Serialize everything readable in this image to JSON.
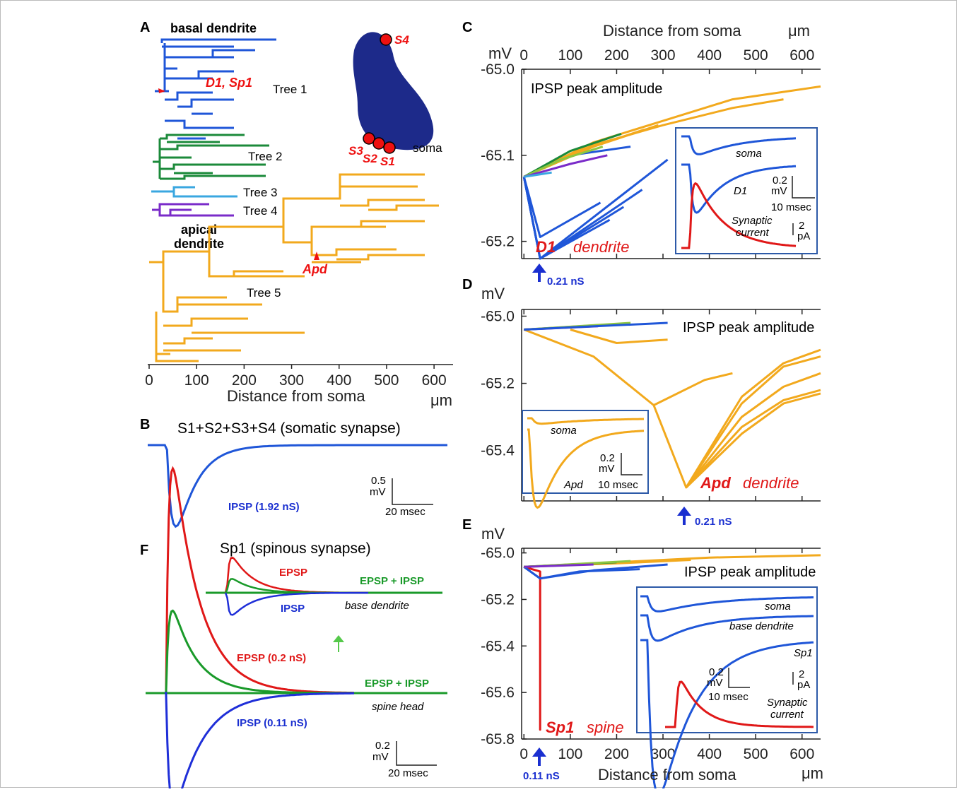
{
  "panels": {
    "A": {
      "label": "A",
      "basal_label": "basal dendrite",
      "apical_label": [
        "apical",
        "dendrite"
      ],
      "d1_label": "D1, Sp1",
      "apd_label": "Apd",
      "trees": [
        "Tree 1",
        "Tree 2",
        "Tree 3",
        "Tree 4",
        "Tree 5"
      ],
      "synapses": [
        "S1",
        "S2",
        "S3",
        "S4"
      ],
      "soma_label": "soma",
      "xlabel": "Distance from soma",
      "unit": "μm",
      "ticks": [
        "0",
        "100",
        "200",
        "300",
        "400",
        "500",
        "600"
      ]
    },
    "B": {
      "label": "B",
      "title": "S1+S2+S3+S4 (somatic synapse)",
      "trace_label": "IPSP (1.92 nS)",
      "scale_v": [
        "0.5",
        "mV"
      ],
      "scale_h": "20 msec"
    },
    "C": {
      "label": "C",
      "site": "D1",
      "site_type": "dendrite",
      "conductance": "0.21 nS",
      "inset": {
        "soma": "soma",
        "d1": "D1",
        "scale_v": [
          "0.2",
          "mV"
        ],
        "scale_h": "10 msec",
        "current": [
          "Synaptic",
          "current"
        ],
        "current_scale": [
          "2",
          "pA"
        ]
      }
    },
    "D": {
      "label": "D",
      "site": "Apd",
      "site_type": "dendrite",
      "conductance": "0.21 nS",
      "inset": {
        "soma": "soma",
        "apd": "Apd",
        "scale_v": [
          "0.2",
          "mV"
        ],
        "scale_h": "10 msec"
      }
    },
    "E": {
      "label": "E",
      "site": "Sp1",
      "site_type": "spine",
      "conductance": "0.11 nS",
      "inset": {
        "soma": "soma",
        "base": "base dendrite",
        "sp1": "Sp1",
        "scale_v": [
          "0.2",
          "mV"
        ],
        "scale_h": "10 msec",
        "current": [
          "Synaptic",
          "current"
        ],
        "current_scale": [
          "2",
          "pA"
        ]
      }
    },
    "F": {
      "label": "F",
      "title": "Sp1 (spinous synapse)",
      "labels": [
        "EPSP (0.2 nS)",
        "EPSP + IPSP",
        "IPSP (0.11 nS)"
      ],
      "inset_labels": [
        "EPSP",
        "EPSP + IPSP",
        "IPSP"
      ],
      "location": "spine head",
      "inset_location": "base dendrite",
      "scale_v": [
        "0.2",
        "mV"
      ],
      "scale_h": "20 msec"
    }
  },
  "colors": {
    "tree1": "#1f56d8",
    "tree2": "#1b8a3a",
    "tree3": "#3aa7e0",
    "tree4": "#7a2bc9",
    "tree5": "#f2a91d",
    "tree6": "#8dc63f",
    "highlight": "#e01818",
    "stimulus": "#1a2fd0"
  },
  "chart_data": [
    {
      "type": "line",
      "title": "IPSP peak amplitude",
      "xlabel": "Distance from soma",
      "xunit": "μm",
      "yunit": "mV",
      "xlim": [
        -5,
        640
      ],
      "ylim": [
        -65.22,
        -65.0
      ],
      "xticks": [
        0,
        100,
        200,
        300,
        400,
        500,
        600
      ],
      "yticks": [
        -65.0,
        -65.1,
        -65.2
      ],
      "ytick_labels": [
        "-65.0",
        "-65.1",
        "-65.2"
      ],
      "x_axis_position": "top",
      "series": [
        {
          "color": "#1f56d8",
          "x": [
            0,
            35,
            310
          ],
          "y": [
            -65.125,
            -65.22,
            -65.105
          ]
        },
        {
          "color": "#1f56d8",
          "x": [
            0,
            35,
            255
          ],
          "y": [
            -65.125,
            -65.22,
            -65.14
          ]
        },
        {
          "color": "#1f56d8",
          "x": [
            0,
            35,
            215
          ],
          "y": [
            -65.125,
            -65.22,
            -65.16
          ]
        },
        {
          "color": "#1f56d8",
          "x": [
            0,
            35,
            185
          ],
          "y": [
            -65.125,
            -65.22,
            -65.175
          ]
        },
        {
          "color": "#1f56d8",
          "x": [
            0,
            35,
            165
          ],
          "y": [
            -65.125,
            -65.195,
            -65.155
          ]
        },
        {
          "color": "#1f56d8",
          "x": [
            0,
            100,
            230
          ],
          "y": [
            -65.125,
            -65.1,
            -65.09
          ]
        },
        {
          "color": "#f2a91d",
          "x": [
            0,
            150,
            300,
            450,
            640
          ],
          "y": [
            -65.125,
            -65.085,
            -65.06,
            -65.035,
            -65.02
          ]
        },
        {
          "color": "#f2a91d",
          "x": [
            0,
            150,
            300,
            450,
            560
          ],
          "y": [
            -65.125,
            -65.088,
            -65.065,
            -65.045,
            -65.035
          ]
        },
        {
          "color": "#f2a91d",
          "x": [
            0,
            150,
            290
          ],
          "y": [
            -65.125,
            -65.09,
            -65.065
          ]
        },
        {
          "color": "#f2a91d",
          "x": [
            0,
            120,
            260
          ],
          "y": [
            -65.125,
            -65.095,
            -65.07
          ]
        },
        {
          "color": "#1b8a3a",
          "x": [
            0,
            100,
            210
          ],
          "y": [
            -65.125,
            -65.095,
            -65.075
          ]
        },
        {
          "color": "#8dc63f",
          "x": [
            0,
            80,
            170
          ],
          "y": [
            -65.125,
            -65.105,
            -65.09
          ]
        },
        {
          "color": "#7a2bc9",
          "x": [
            0,
            100,
            180
          ],
          "y": [
            -65.125,
            -65.11,
            -65.1
          ]
        },
        {
          "color": "#3aa7e0",
          "x": [
            0,
            60
          ],
          "y": [
            -65.125,
            -65.12
          ]
        }
      ]
    },
    {
      "type": "line",
      "title": "IPSP peak amplitude",
      "xlabel": "",
      "yunit": "mV",
      "xlim": [
        -5,
        640
      ],
      "ylim": [
        -65.55,
        -64.98
      ],
      "xticks": [
        0,
        100,
        200,
        300,
        400,
        500,
        600
      ],
      "yticks": [
        -65.0,
        -65.2,
        -65.4
      ],
      "ytick_labels": [
        "-65.0",
        "-65.2",
        "-65.4"
      ],
      "series": [
        {
          "color": "#f2a91d",
          "x": [
            0,
            150,
            280,
            350,
            470,
            560,
            640
          ],
          "y": [
            -65.04,
            -65.12,
            -65.265,
            -65.51,
            -65.24,
            -65.14,
            -65.1
          ]
        },
        {
          "color": "#f2a91d",
          "x": [
            350,
            470,
            560,
            640
          ],
          "y": [
            -65.51,
            -65.26,
            -65.15,
            -65.12
          ]
        },
        {
          "color": "#f2a91d",
          "x": [
            350,
            470,
            560,
            640
          ],
          "y": [
            -65.51,
            -65.3,
            -65.21,
            -65.17
          ]
        },
        {
          "color": "#f2a91d",
          "x": [
            350,
            470,
            560,
            640
          ],
          "y": [
            -65.51,
            -65.33,
            -65.25,
            -65.22
          ]
        },
        {
          "color": "#f2a91d",
          "x": [
            350,
            470,
            560,
            640
          ],
          "y": [
            -65.51,
            -65.35,
            -65.26,
            -65.23
          ]
        },
        {
          "color": "#f2a91d",
          "x": [
            280,
            390,
            450
          ],
          "y": [
            -65.265,
            -65.19,
            -65.17
          ]
        },
        {
          "color": "#f2a91d",
          "x": [
            100,
            200,
            310
          ],
          "y": [
            -65.04,
            -65.08,
            -65.07
          ]
        },
        {
          "color": "#f2a91d",
          "x": [
            0,
            180
          ],
          "y": [
            -65.04,
            -65.025
          ]
        },
        {
          "color": "#1b8a3a",
          "x": [
            0,
            200
          ],
          "y": [
            -65.04,
            -65.025
          ]
        },
        {
          "color": "#8dc63f",
          "x": [
            0,
            230
          ],
          "y": [
            -65.04,
            -65.02
          ]
        },
        {
          "color": "#7a2bc9",
          "x": [
            0,
            160
          ],
          "y": [
            -65.04,
            -65.03
          ]
        },
        {
          "color": "#1f56d8",
          "x": [
            0,
            310
          ],
          "y": [
            -65.04,
            -65.02
          ]
        }
      ]
    },
    {
      "type": "line",
      "title": "IPSP peak amplitude",
      "xlabel": "Distance from soma",
      "xunit": "μm",
      "yunit": "mV",
      "xlim": [
        -5,
        640
      ],
      "ylim": [
        -65.8,
        -64.98
      ],
      "xticks": [
        0,
        100,
        200,
        300,
        400,
        500,
        600
      ],
      "yticks": [
        -65.0,
        -65.2,
        -65.4,
        -65.6,
        -65.8
      ],
      "ytick_labels": [
        "-65.0",
        "-65.2",
        "-65.4",
        "-65.6",
        "-65.8"
      ],
      "series": [
        {
          "color": "#e01818",
          "x": [
            0,
            35,
            35,
            35
          ],
          "y": [
            -65.06,
            -65.08,
            -65.76,
            -65.1
          ]
        },
        {
          "color": "#1f56d8",
          "x": [
            0,
            35,
            150,
            310
          ],
          "y": [
            -65.06,
            -65.11,
            -65.075,
            -65.05
          ]
        },
        {
          "color": "#1f56d8",
          "x": [
            0,
            35,
            120,
            250
          ],
          "y": [
            -65.06,
            -65.11,
            -65.08,
            -65.07
          ]
        },
        {
          "color": "#f2a91d",
          "x": [
            0,
            200,
            400,
            640
          ],
          "y": [
            -65.06,
            -65.04,
            -65.02,
            -65.01
          ]
        },
        {
          "color": "#f2a91d",
          "x": [
            0,
            200,
            360
          ],
          "y": [
            -65.06,
            -65.045,
            -65.03
          ]
        },
        {
          "color": "#1b8a3a",
          "x": [
            0,
            200
          ],
          "y": [
            -65.06,
            -65.04
          ]
        },
        {
          "color": "#8dc63f",
          "x": [
            0,
            230
          ],
          "y": [
            -65.06,
            -65.035
          ]
        },
        {
          "color": "#7a2bc9",
          "x": [
            0,
            150
          ],
          "y": [
            -65.06,
            -65.05
          ]
        }
      ]
    }
  ]
}
